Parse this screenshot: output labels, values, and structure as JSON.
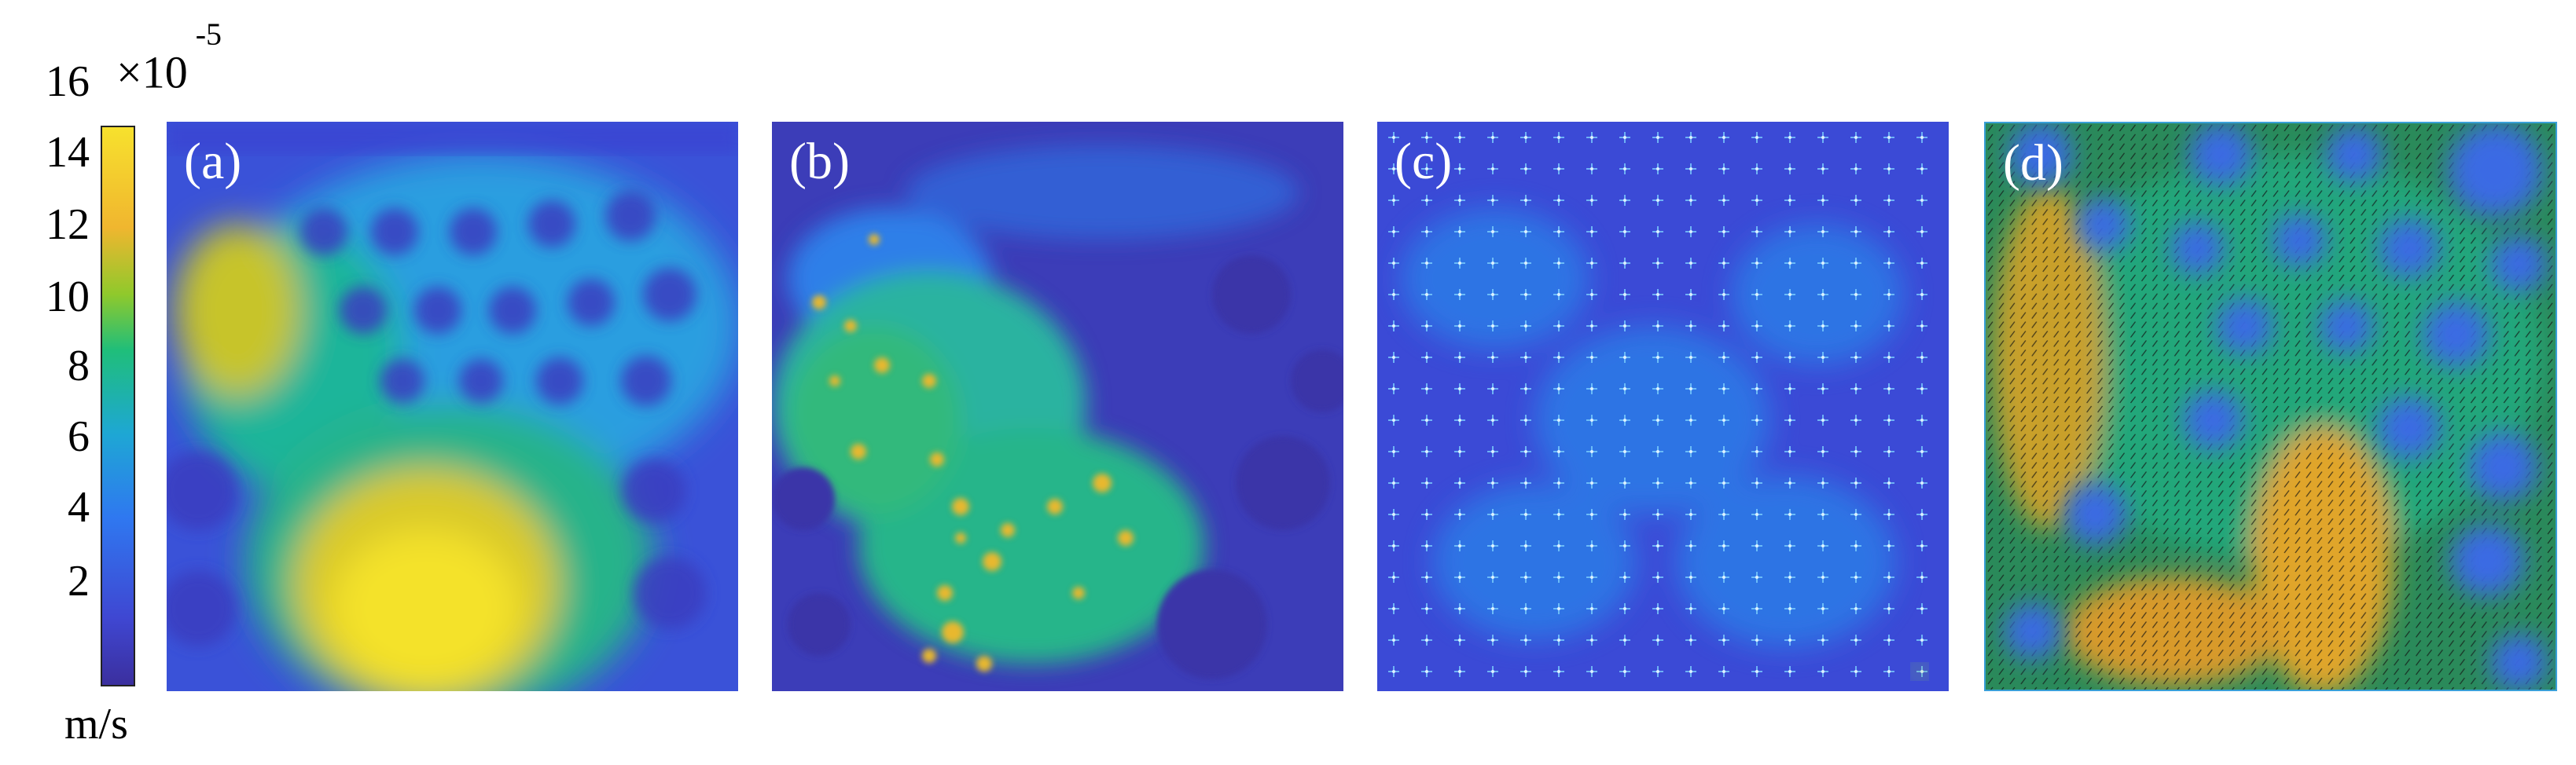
{
  "colorbar": {
    "exponent_base": "×10",
    "exponent": "-5",
    "ticks": [
      "16",
      "14",
      "12",
      "10",
      "8",
      "6",
      "4",
      "2"
    ],
    "unit": "m/s",
    "colormap": [
      "#3b2f9e",
      "#3f47d2",
      "#2f78f0",
      "#1ea7d4",
      "#1fbe7a",
      "#8fc92c",
      "#f0b62f",
      "#f7e12d"
    ]
  },
  "panels": [
    {
      "label": "(a)"
    },
    {
      "label": "(b)"
    },
    {
      "label": "(c)"
    },
    {
      "label": "(d)"
    }
  ]
}
